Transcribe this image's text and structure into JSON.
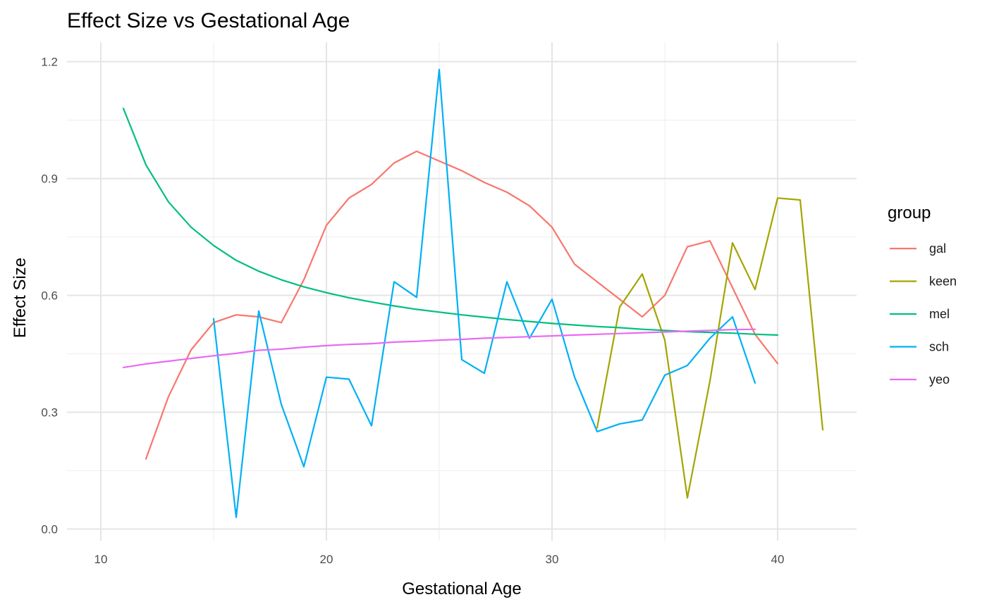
{
  "chart_data": {
    "type": "line",
    "title": "Effect Size vs Gestational Age",
    "xlabel": "Gestational Age",
    "ylabel": "Effect Size",
    "xlim": [
      8.5,
      43.5
    ],
    "ylim": [
      -0.03,
      1.25
    ],
    "x_ticks": [
      10,
      20,
      30,
      40
    ],
    "x_minor_ticks": [
      15,
      25,
      35
    ],
    "y_ticks": [
      0.0,
      0.3,
      0.6,
      0.9,
      1.2
    ],
    "y_tick_labels": [
      "0.0",
      "0.3",
      "0.6",
      "0.9",
      "1.2"
    ],
    "y_minor_ticks": [
      0.15,
      0.45,
      0.75,
      1.05
    ],
    "grid": true,
    "legend": {
      "title": "group",
      "position": "right"
    },
    "series": [
      {
        "name": "gal",
        "color": "#F8766D",
        "x": [
          12,
          13,
          14,
          15,
          16,
          17,
          18,
          19,
          20,
          21,
          22,
          23,
          24,
          25,
          26,
          27,
          28,
          29,
          30,
          31,
          32,
          33,
          34,
          35,
          36,
          37,
          38,
          39,
          40
        ],
        "values": [
          0.18,
          0.34,
          0.46,
          0.53,
          0.55,
          0.545,
          0.53,
          0.64,
          0.78,
          0.85,
          0.885,
          0.94,
          0.97,
          0.945,
          0.92,
          0.89,
          0.865,
          0.83,
          0.775,
          0.68,
          0.635,
          0.59,
          0.545,
          0.6,
          0.725,
          0.74,
          0.62,
          0.5,
          0.425
        ]
      },
      {
        "name": "keen",
        "color": "#A3A500",
        "x": [
          32,
          33,
          34,
          35,
          36,
          37,
          38,
          39,
          40,
          41,
          42
        ],
        "values": [
          0.26,
          0.57,
          0.655,
          0.485,
          0.08,
          0.38,
          0.735,
          0.615,
          0.85,
          0.845,
          0.255
        ]
      },
      {
        "name": "mel",
        "color": "#00BF7D",
        "x": [
          11,
          12,
          13,
          14,
          15,
          16,
          17,
          18,
          19,
          20,
          21,
          22,
          23,
          24,
          25,
          26,
          27,
          28,
          29,
          30,
          31,
          32,
          33,
          34,
          35,
          36,
          37,
          38,
          39,
          40
        ],
        "values": [
          1.08,
          0.935,
          0.84,
          0.775,
          0.728,
          0.69,
          0.662,
          0.64,
          0.622,
          0.607,
          0.594,
          0.583,
          0.573,
          0.564,
          0.557,
          0.55,
          0.544,
          0.538,
          0.533,
          0.528,
          0.524,
          0.52,
          0.517,
          0.513,
          0.51,
          0.507,
          0.505,
          0.503,
          0.5,
          0.498
        ]
      },
      {
        "name": "sch",
        "color": "#00B0F6",
        "x": [
          15,
          16,
          17,
          18,
          19,
          20,
          21,
          22,
          23,
          24,
          25,
          26,
          27,
          28,
          29,
          30,
          31,
          32,
          33,
          34,
          35,
          36,
          37,
          38,
          39
        ],
        "values": [
          0.54,
          0.03,
          0.56,
          0.32,
          0.16,
          0.39,
          0.385,
          0.265,
          0.635,
          0.595,
          1.18,
          0.435,
          0.4,
          0.635,
          0.49,
          0.59,
          0.39,
          0.25,
          0.27,
          0.28,
          0.395,
          0.42,
          0.49,
          0.545,
          0.375
        ]
      },
      {
        "name": "yeo",
        "color": "#E76BF3",
        "x": [
          11,
          12,
          13,
          14,
          15,
          16,
          17,
          18,
          19,
          20,
          21,
          22,
          23,
          24,
          25,
          26,
          27,
          28,
          29,
          30,
          31,
          32,
          33,
          34,
          35,
          36,
          37,
          38,
          39
        ],
        "values": [
          0.415,
          0.424,
          0.431,
          0.438,
          0.445,
          0.451,
          0.459,
          0.462,
          0.467,
          0.471,
          0.474,
          0.476,
          0.48,
          0.482,
          0.485,
          0.487,
          0.49,
          0.492,
          0.494,
          0.496,
          0.498,
          0.5,
          0.502,
          0.504,
          0.506,
          0.508,
          0.51,
          0.512,
          0.513
        ]
      }
    ]
  }
}
